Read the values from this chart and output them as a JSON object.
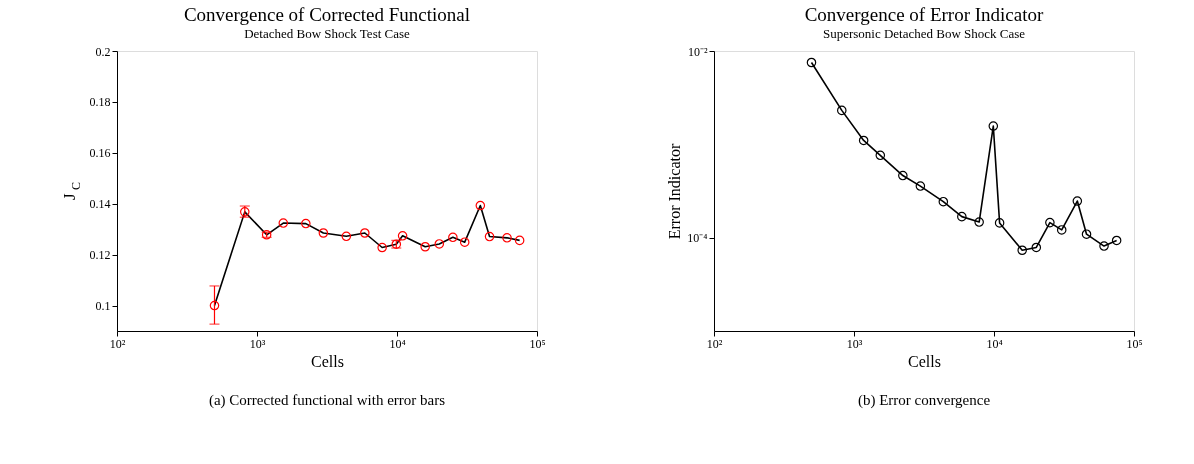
{
  "chart_data": [
    {
      "type": "line",
      "title": "Convergence of Corrected Functional",
      "subtitle": "Detached Bow Shock Test Case",
      "xlabel": "Cells",
      "ylabel": "J$_{C}$",
      "x": [
        497,
        818,
        1172,
        1541,
        2233,
        2979,
        4345,
        5891,
        7834,
        9885,
        10965,
        15900,
        20050,
        25070,
        30460,
        39370,
        45810,
        61080,
        75160
      ],
      "series": [
        {
          "type": "line",
          "color": "#000000",
          "values": [
            0.1,
            0.1368,
            0.1278,
            0.1324,
            0.1322,
            0.1285,
            0.1272,
            0.1285,
            0.1228,
            0.1241,
            0.1274,
            0.1231,
            0.1242,
            0.1268,
            0.1249,
            0.1393,
            0.1271,
            0.1266,
            0.1256
          ]
        },
        {
          "type": "scatter",
          "color": "#ff0000",
          "marker": "circle",
          "values": [
            0.1,
            0.1368,
            0.1278,
            0.1324,
            0.1322,
            0.1285,
            0.1272,
            0.1285,
            0.1228,
            0.1241,
            0.1274,
            0.1231,
            0.1242,
            0.1268,
            0.1249,
            0.1393,
            0.1271,
            0.1266,
            0.1256
          ],
          "errors": [
            [
              0.0927,
              0.1077
            ],
            [
              0.1347,
              0.1391
            ],
            0.001,
            null,
            null,
            null,
            null,
            null,
            null,
            [
              0.1226,
              0.1256
            ],
            null,
            null,
            null,
            null,
            null,
            null,
            null,
            null,
            null
          ]
        }
      ],
      "log": "x",
      "xlim": [
        100,
        100000
      ],
      "xticks": [
        {
          "value": 100,
          "label": "10²"
        },
        {
          "value": 1000,
          "label": "10³"
        },
        {
          "value": 10000,
          "label": "10⁴"
        },
        {
          "value": 100000,
          "label": "10⁵"
        }
      ],
      "ylim": [
        0.09,
        0.2
      ],
      "yticks": [
        0.1,
        0.12,
        0.14,
        0.16,
        0.18,
        0.2
      ],
      "grid": false,
      "annotations": [
        "(a) Corrected functional with error bars"
      ]
    },
    {
      "type": "line",
      "title": "Convergence of Error Indicator",
      "subtitle": "Supersonic Detached Bow Shock Case",
      "xlabel": "Cells",
      "ylabel": "Error Indicator",
      "x": [
        497,
        818,
        1172,
        1541,
        2233,
        2979,
        4345,
        5891,
        7834,
        9885,
        10965,
        15900,
        20050,
        25070,
        30460,
        39370,
        45810,
        61080,
        75160
      ],
      "series": [
        {
          "type": "line",
          "color": "#000000",
          "marker": "circle",
          "values": [
            0.00753,
            0.00231,
            0.0011,
            0.000763,
            0.000463,
            0.000357,
            0.000243,
            0.000168,
            0.000147,
            0.00157,
            0.000144,
            7.33e-05,
            7.85e-05,
            0.000145,
            0.000121,
            0.000247,
            0.000109,
            8.13e-05,
            9.33e-05
          ]
        }
      ],
      "log": "xy",
      "xlim": [
        100,
        100000
      ],
      "xticks": [
        {
          "value": 100,
          "label": "10²"
        },
        {
          "value": 1000,
          "label": "10³"
        },
        {
          "value": 10000,
          "label": "10⁴"
        },
        {
          "value": 100000,
          "label": "10⁵"
        }
      ],
      "ylim": [
        1e-05,
        0.01
      ],
      "yticks": [
        {
          "value": 0.01,
          "label": "10⁻²"
        },
        {
          "value": 0.0001,
          "label": "10⁻⁴"
        }
      ],
      "grid": false,
      "annotations": [
        "(b) Error convergence"
      ]
    }
  ]
}
